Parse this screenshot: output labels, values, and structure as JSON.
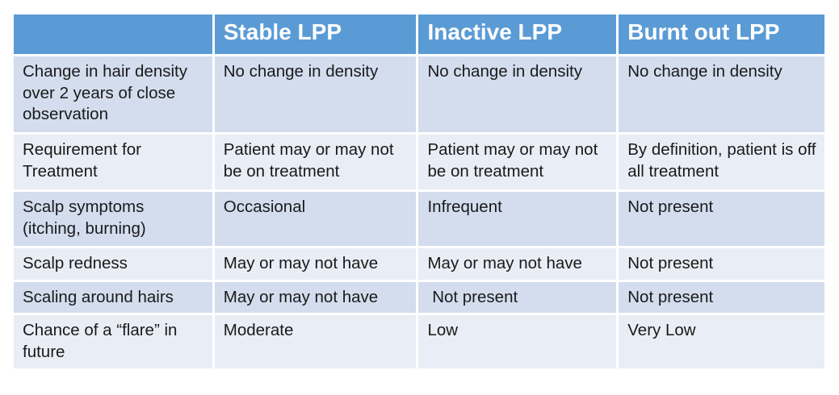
{
  "colors": {
    "header_bg": "#5B9BD5",
    "header_text": "#FFFFFF",
    "band_dark": "#D3DDEE",
    "band_light": "#E9EDF5",
    "body_text": "#1A1A1A",
    "border": "#FFFFFF",
    "page_bg": "#FFFFFF"
  },
  "table": {
    "columns": {
      "row_header": "",
      "col1": "Stable LPP",
      "col2": "Inactive LPP",
      "col3": "Burnt out LPP"
    },
    "rows": [
      {
        "label": "Change in hair density over 2 years of close observation",
        "cells": [
          "No change in density",
          "No change in density",
          "No change in density"
        ]
      },
      {
        "label": "Requirement for Treatment",
        "cells": [
          "Patient may or may not be on treatment",
          "Patient may or may not be on treatment",
          "By definition, patient is off all treatment"
        ]
      },
      {
        "label": "Scalp symptoms (itching, burning)",
        "cells": [
          "Occasional",
          "Infrequent",
          "Not present"
        ]
      },
      {
        "label": "Scalp redness",
        "cells": [
          "May or may not have",
          "May or may not have",
          "Not present"
        ]
      },
      {
        "label": "Scaling around hairs",
        "cells": [
          "May or may not have",
          " Not present",
          "Not present"
        ]
      },
      {
        "label": "Chance of a “flare” in future",
        "cells": [
          "Moderate",
          "Low",
          "Very Low"
        ]
      }
    ]
  }
}
